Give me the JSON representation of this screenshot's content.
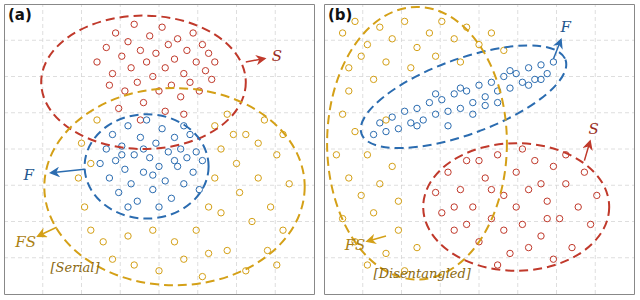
{
  "chart_data": [
    {
      "type": "scatter",
      "title": "(a)",
      "annotation": "[Serial]",
      "marker": "circle",
      "xlim": [
        0,
        100
      ],
      "ylim": [
        0,
        100
      ],
      "xticks": [
        12.5,
        25,
        37.5,
        50,
        62.5,
        75,
        87.5
      ],
      "yticks": [
        12.5,
        25,
        37.5,
        50,
        62.5,
        75,
        87.5
      ],
      "grid": true,
      "tick_labels": false,
      "series": [
        {
          "name": "S",
          "color": "#c0392b",
          "x": [
            30,
            33,
            35,
            36,
            38,
            39,
            40,
            41,
            42,
            43,
            44,
            45,
            46,
            47,
            48,
            49,
            50,
            51,
            52,
            53,
            54,
            55,
            56,
            57,
            58,
            59,
            60,
            61,
            62,
            63,
            64,
            65,
            66,
            67,
            68,
            34,
            37,
            44,
            52,
            58
          ],
          "y": [
            80,
            85,
            76,
            90,
            82,
            70,
            87,
            78,
            93,
            73,
            84,
            66,
            80,
            89,
            75,
            83,
            70,
            92,
            78,
            86,
            72,
            81,
            88,
            68,
            76,
            84,
            73,
            90,
            80,
            70,
            86,
            77,
            83,
            74,
            80,
            72,
            64,
            60,
            63,
            62
          ]
        },
        {
          "name": "F",
          "color": "#2b6cb0",
          "x": [
            31,
            33,
            34,
            35,
            36,
            37,
            38,
            39,
            40,
            41,
            42,
            43,
            44,
            45,
            46,
            47,
            48,
            49,
            50,
            51,
            52,
            53,
            54,
            55,
            56,
            57,
            58,
            59,
            60,
            61,
            62,
            63,
            64,
            40,
            50,
            45,
            55,
            38,
            48,
            58
          ],
          "y": [
            45,
            50,
            40,
            55,
            46,
            35,
            51,
            43,
            58,
            38,
            48,
            32,
            54,
            42,
            60,
            47,
            36,
            52,
            44,
            57,
            39,
            49,
            33,
            54,
            44,
            50,
            38,
            47,
            55,
            42,
            49,
            36,
            46,
            30,
            30,
            50,
            46,
            48,
            41,
            58
          ]
        },
        {
          "name": "FS",
          "color": "#d4a017",
          "x": [
            24,
            26,
            25,
            28,
            30,
            32,
            35,
            40,
            42,
            48,
            50,
            55,
            58,
            62,
            66,
            68,
            70,
            68,
            72,
            75,
            76,
            78,
            80,
            82,
            84,
            85,
            86,
            88,
            90,
            92,
            72,
            78,
            64,
            70,
            82,
            88,
            74,
            90,
            28,
            66
          ],
          "y": [
            40,
            30,
            52,
            22,
            60,
            18,
            12,
            20,
            10,
            22,
            8,
            18,
            12,
            22,
            30,
            40,
            50,
            58,
            62,
            45,
            35,
            55,
            25,
            40,
            60,
            15,
            30,
            48,
            22,
            38,
            15,
            8,
            6,
            28,
            52,
            10,
            55,
            55,
            45,
            14
          ]
        }
      ]
    },
    {
      "type": "scatter",
      "title": "(b)",
      "annotation": "[Disentangled]",
      "marker": "circle",
      "xlim": [
        0,
        100
      ],
      "ylim": [
        0,
        100
      ],
      "xticks": [
        12.5,
        25,
        37.5,
        50,
        62.5,
        75,
        87.5
      ],
      "yticks": [
        12.5,
        25,
        37.5,
        50,
        62.5,
        75,
        87.5
      ],
      "grid": true,
      "tick_labels": false,
      "series": [
        {
          "name": "F",
          "color": "#2b6cb0",
          "x": [
            16,
            18,
            20,
            22,
            24,
            26,
            28,
            30,
            32,
            34,
            36,
            38,
            40,
            42,
            44,
            46,
            48,
            50,
            52,
            54,
            56,
            58,
            60,
            62,
            64,
            66,
            68,
            70,
            72,
            74,
            36,
            44,
            52,
            60,
            66,
            40,
            48,
            56,
            30,
            70
          ],
          "y": [
            55,
            59,
            56,
            61,
            57,
            63,
            59,
            64,
            60,
            66,
            62,
            67,
            63,
            69,
            64,
            70,
            66,
            72,
            68,
            73,
            70,
            75,
            71,
            76,
            73,
            78,
            74,
            79,
            76,
            80,
            69,
            71,
            65,
            77,
            72,
            58,
            62,
            66,
            58,
            74
          ]
        },
        {
          "name": "S",
          "color": "#c0392b",
          "x": [
            36,
            38,
            40,
            42,
            44,
            46,
            48,
            50,
            52,
            54,
            56,
            58,
            60,
            62,
            64,
            66,
            68,
            70,
            72,
            74,
            76,
            78,
            80,
            82,
            84,
            86,
            46,
            54,
            62,
            70,
            58,
            66,
            74,
            50,
            78,
            42,
            88,
            56,
            64,
            72
          ],
          "y": [
            35,
            28,
            42,
            22,
            36,
            46,
            30,
            18,
            40,
            26,
            48,
            34,
            14,
            42,
            24,
            36,
            46,
            20,
            32,
            44,
            26,
            38,
            16,
            30,
            42,
            24,
            24,
            36,
            30,
            38,
            22,
            16,
            12,
            46,
            48,
            30,
            34,
            10,
            50,
            26
          ]
        },
        {
          "name": "FS",
          "color": "#d4a017",
          "x": [
            6,
            10,
            14,
            18,
            22,
            26,
            30,
            34,
            38,
            42,
            46,
            50,
            8,
            12,
            16,
            20,
            28,
            36,
            44,
            54,
            6,
            10,
            14,
            8,
            12,
            6,
            16,
            10,
            14,
            20,
            24,
            18,
            22,
            26,
            30,
            8,
            20,
            24,
            4,
            58
          ],
          "y": [
            90,
            94,
            86,
            92,
            88,
            94,
            85,
            90,
            94,
            88,
            92,
            86,
            78,
            82,
            74,
            80,
            78,
            82,
            80,
            90,
            62,
            56,
            48,
            40,
            34,
            26,
            28,
            18,
            10,
            14,
            22,
            38,
            44,
            8,
            16,
            70,
            60,
            32,
            48,
            84
          ]
        }
      ]
    }
  ]
}
